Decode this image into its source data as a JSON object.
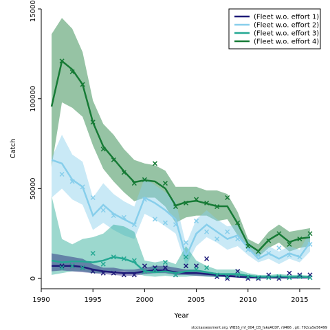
{
  "chart_data": {
    "type": "line",
    "x_label": "Year",
    "y_label": "Catch",
    "footer": "stockassessment.org, WBSS_mf_004_CB_fakeACDF, r9466 , git: 792ca5e56499",
    "x": [
      1991,
      1992,
      1993,
      1994,
      1995,
      1996,
      1997,
      1998,
      1999,
      2000,
      2001,
      2002,
      2003,
      2004,
      2005,
      2006,
      2007,
      2008,
      2009,
      2010,
      2011,
      2012,
      2013,
      2014,
      2015,
      2016
    ],
    "xlim": [
      1990,
      2017
    ],
    "xticks": [
      1990,
      1995,
      2000,
      2005,
      2010,
      2015
    ],
    "ylim": [
      -5700,
      150000
    ],
    "yticks": [
      0,
      50000,
      100000,
      150000
    ],
    "legend": "top-right",
    "series": [
      {
        "name": "(Fleet w.o. effort 1)",
        "color": "#1e1a78",
        "values": [
          7000,
          7000,
          7000,
          6500,
          5000,
          4000,
          3500,
          3000,
          3000,
          4000,
          4500,
          4500,
          3500,
          3000,
          3000,
          2500,
          2000,
          1500,
          1000,
          600,
          500,
          500,
          500,
          500,
          500,
          500
        ],
        "upper": [
          14000,
          13000,
          12000,
          11000,
          8000,
          6000,
          6000,
          5000,
          5000,
          6000,
          7000,
          7000,
          6000,
          5000,
          5000,
          4000,
          3000,
          2500,
          2000,
          1200,
          1000,
          1000,
          1000,
          1000,
          1000,
          1000
        ],
        "lower": [
          4000,
          4500,
          4000,
          3500,
          3000,
          2500,
          2000,
          1500,
          1500,
          2500,
          3000,
          3000,
          2000,
          2000,
          1500,
          1200,
          1000,
          700,
          500,
          300,
          200,
          200,
          200,
          200,
          200,
          200
        ],
        "observed": [
          null,
          7000,
          7000,
          6000,
          4000,
          3000,
          3000,
          2000,
          2000,
          7000,
          6000,
          6000,
          2000,
          7000,
          7000,
          11000,
          1000,
          0,
          4000,
          0,
          0,
          2000,
          0,
          3000,
          2000,
          2000
        ]
      },
      {
        "name": "(Fleet w.o. effort 2)",
        "color": "#87ceeb",
        "values": [
          66000,
          64000,
          55000,
          51000,
          35000,
          41000,
          36000,
          33000,
          30000,
          45000,
          42000,
          38000,
          33000,
          12000,
          25000,
          30000,
          26000,
          22000,
          24000,
          17000,
          11000,
          14000,
          11000,
          14000,
          12000,
          20000
        ],
        "upper": [
          67000,
          80000,
          69000,
          65000,
          45000,
          53000,
          47000,
          43000,
          40000,
          56000,
          52000,
          48000,
          43000,
          19000,
          33000,
          38000,
          33000,
          29000,
          30000,
          21000,
          14000,
          18000,
          15000,
          18000,
          16000,
          26000
        ],
        "lower": [
          45000,
          50000,
          44000,
          41000,
          27000,
          31000,
          27000,
          24000,
          22000,
          36000,
          33000,
          29000,
          25000,
          7000,
          18000,
          23000,
          20000,
          16000,
          18000,
          13000,
          9000,
          11000,
          8000,
          11000,
          9000,
          15000
        ],
        "observed": [
          null,
          58000,
          54000,
          51000,
          45000,
          38000,
          35000,
          34000,
          30000,
          44000,
          33000,
          31000,
          30000,
          20000,
          32000,
          26000,
          22000,
          26000,
          22000,
          16000,
          13000,
          14000,
          17000,
          13000,
          12000,
          19000
        ]
      },
      {
        "name": "(Fleet w.o. effort 3)",
        "color": "#24a893",
        "values": [
          10000,
          9000,
          9500,
          9500,
          9000,
          10000,
          12000,
          11000,
          9000,
          4000,
          3500,
          4000,
          3000,
          4000,
          4500,
          3500,
          2500,
          2500,
          2500,
          1500,
          1000,
          1000,
          1200,
          1000,
          1000,
          800
        ],
        "upper": [
          46000,
          22000,
          19000,
          22000,
          23000,
          25000,
          30000,
          29000,
          26000,
          10000,
          9000,
          10000,
          8000,
          18000,
          10000,
          7000,
          5000,
          5000,
          5000,
          3000,
          2000,
          2000,
          2500,
          2000,
          2000,
          1600
        ],
        "lower": [
          2000,
          3000,
          4000,
          4000,
          3000,
          3000,
          4000,
          4000,
          3000,
          1500,
          1000,
          1500,
          1000,
          1000,
          1500,
          1000,
          800,
          800,
          800,
          500,
          300,
          300,
          400,
          300,
          300,
          200
        ],
        "observed": [
          null,
          6000,
          7000,
          6000,
          14000,
          8000,
          12000,
          11000,
          10000,
          4000,
          5000,
          9000,
          2000,
          12000,
          5000,
          6000,
          2000,
          1000,
          2000,
          1000,
          500,
          500,
          1000,
          500,
          1000,
          500
        ]
      },
      {
        "name": "(Fleet w.o. effort 4)",
        "color": "#167a35",
        "values": [
          95700,
          121000,
          116300,
          108000,
          86900,
          73500,
          66600,
          59700,
          53600,
          54700,
          54000,
          50100,
          40600,
          42500,
          43200,
          41700,
          40200,
          40200,
          30600,
          19100,
          15300,
          21400,
          24900,
          20300,
          22200,
          23000
        ],
        "upper": [
          136000,
          145000,
          139000,
          126000,
          99000,
          86000,
          80000,
          72000,
          66000,
          64000,
          63000,
          60000,
          51000,
          51000,
          51000,
          49000,
          49000,
          47000,
          37000,
          22000,
          19000,
          26000,
          30000,
          26000,
          27000,
          28000
        ],
        "lower": [
          62000,
          98000,
          95000,
          90000,
          74000,
          61000,
          54000,
          48000,
          43000,
          45000,
          45000,
          40000,
          31000,
          34000,
          35000,
          35000,
          32000,
          33000,
          24000,
          16000,
          12000,
          17000,
          20000,
          15000,
          17000,
          18000
        ],
        "observed": [
          null,
          121000,
          115000,
          108000,
          87000,
          72000,
          66000,
          59000,
          53000,
          55000,
          64000,
          53000,
          40000,
          42000,
          44000,
          42000,
          40000,
          45000,
          31000,
          18000,
          15000,
          21000,
          25000,
          19000,
          22000,
          25000
        ]
      }
    ]
  }
}
